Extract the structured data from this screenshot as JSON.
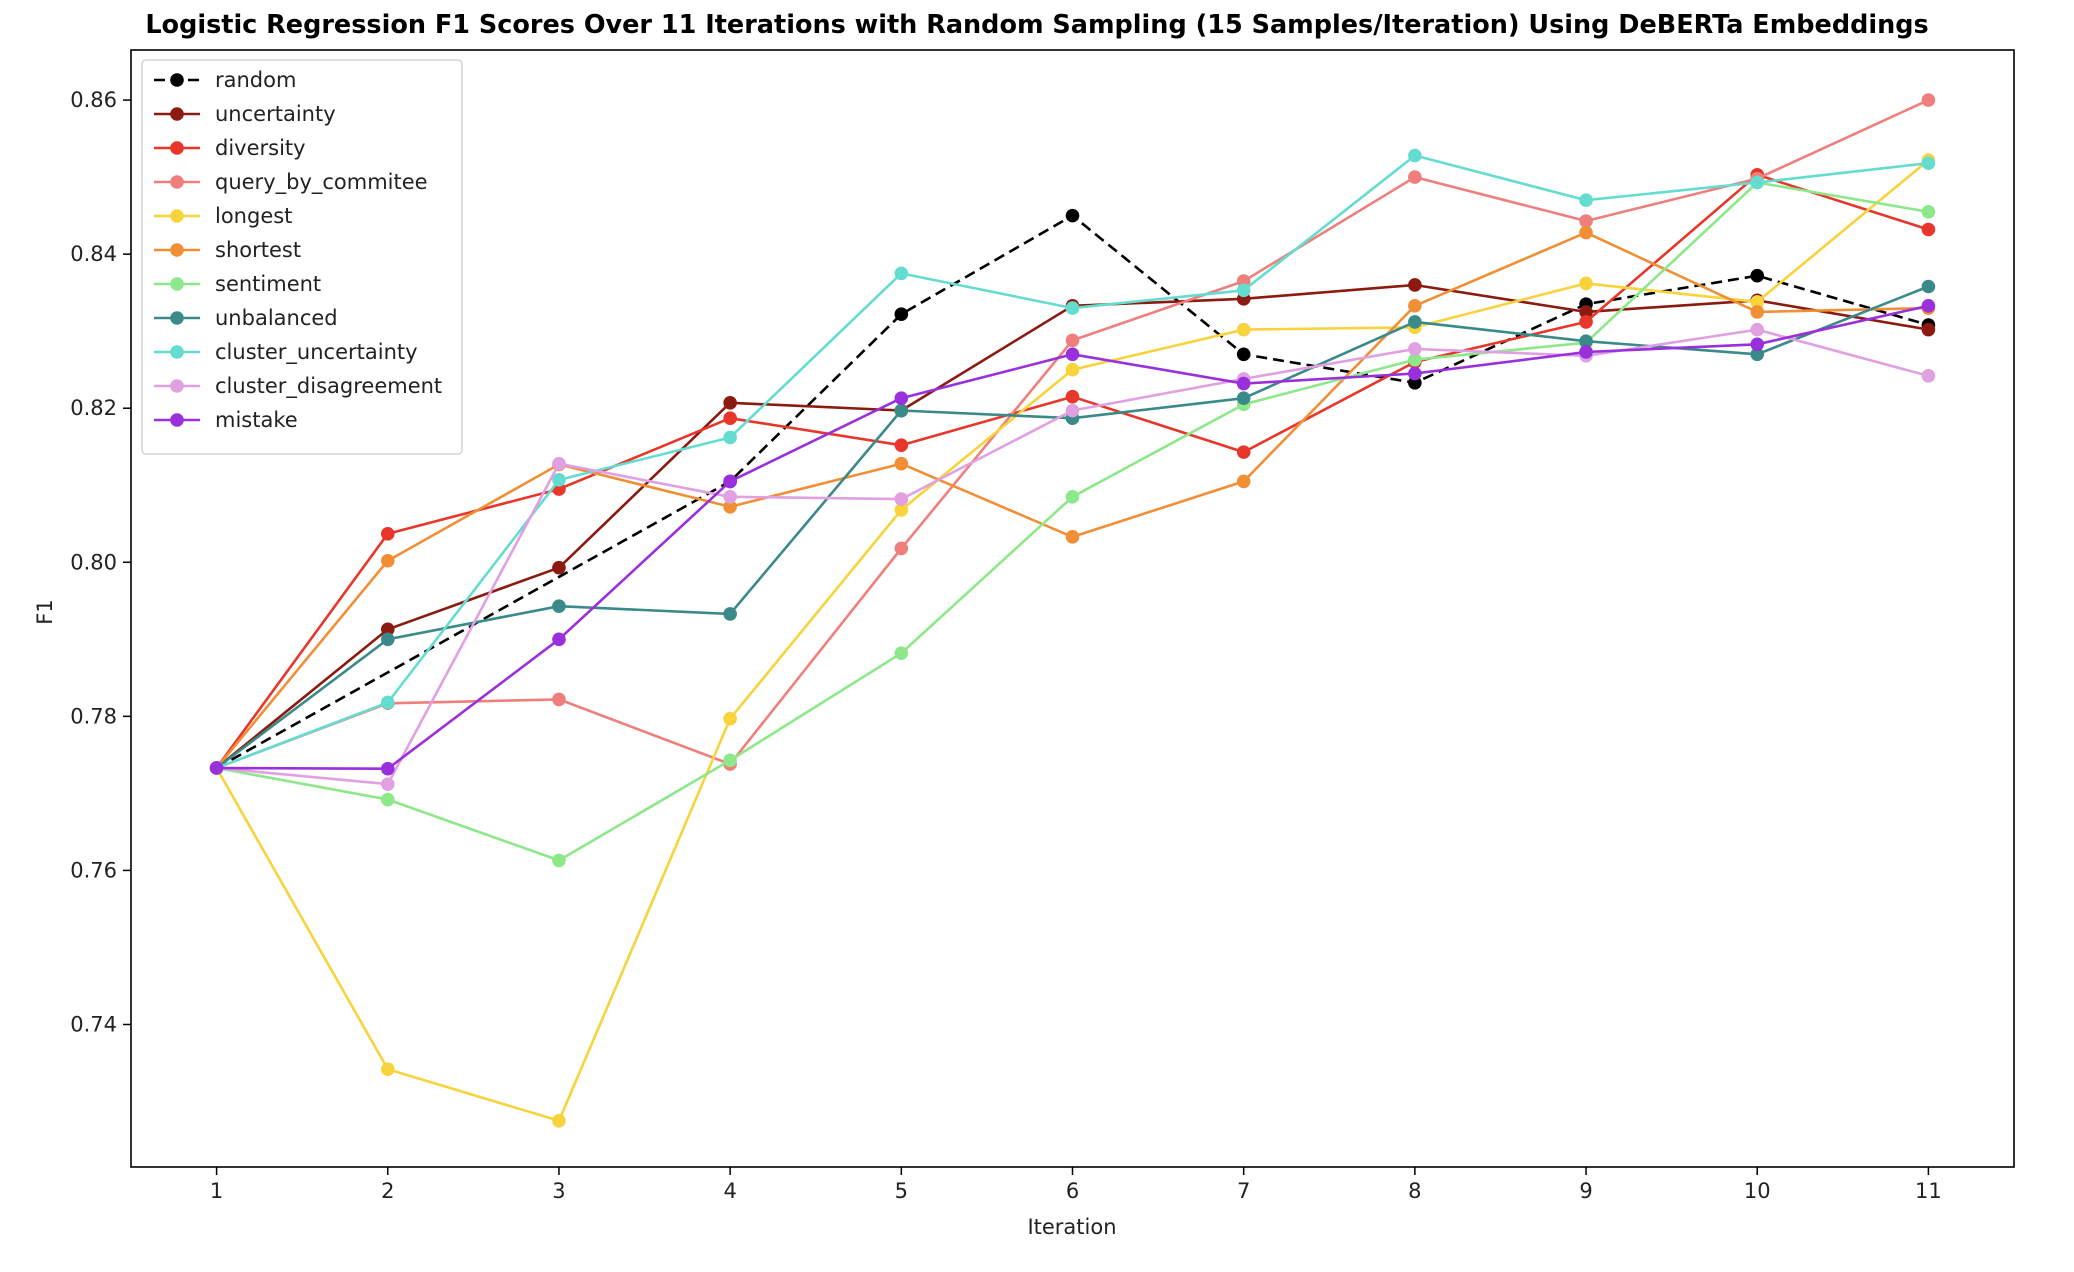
{
  "chart_data": {
    "type": "line",
    "title": "Logistic Regression F1 Scores Over 11 Iterations with Random Sampling (15 Samples/Iteration) Using DeBERTa Embeddings",
    "xlabel": "Iteration",
    "ylabel": "F1",
    "x": [
      1,
      2,
      3,
      4,
      5,
      6,
      7,
      8,
      9,
      10,
      11
    ],
    "xlim": [
      0.5,
      11.5
    ],
    "ylim": [
      0.7215,
      0.8665
    ],
    "yticks": [
      0.74,
      0.76,
      0.78,
      0.8,
      0.82,
      0.84,
      0.86
    ],
    "ytick_labels": [
      "0.74",
      "0.76",
      "0.78",
      "0.80",
      "0.82",
      "0.84",
      "0.86"
    ],
    "grid": false,
    "legend_position": "top-left",
    "series": [
      {
        "name": "random",
        "color": "#000000",
        "dashed": true,
        "values": [
          0.7733,
          null,
          null,
          0.8105,
          0.8322,
          0.845,
          0.827,
          0.8233,
          0.8335,
          0.8372,
          0.8308
        ]
      },
      {
        "name": "uncertainty",
        "color": "#8b1a10",
        "dashed": false,
        "values": [
          0.7733,
          0.7913,
          0.7993,
          0.8207,
          0.8197,
          0.8333,
          0.8342,
          0.836,
          0.8325,
          0.834,
          0.8302
        ]
      },
      {
        "name": "diversity",
        "color": "#e8362a",
        "dashed": false,
        "values": [
          0.7733,
          0.8037,
          0.8095,
          0.8187,
          0.8152,
          0.8215,
          0.8143,
          0.826,
          0.8312,
          0.8503,
          0.8432
        ]
      },
      {
        "name": "query_by_commitee",
        "color": "#ef7f7c",
        "dashed": false,
        "values": [
          0.7733,
          0.7817,
          0.7822,
          0.7738,
          0.8018,
          0.8288,
          0.8365,
          0.85,
          0.8443,
          0.8498,
          0.86
        ]
      },
      {
        "name": "longest",
        "color": "#f8d33c",
        "dashed": false,
        "values": [
          0.7733,
          0.7342,
          0.7275,
          0.7797,
          0.8068,
          0.825,
          0.8302,
          0.8305,
          0.8362,
          0.8338,
          0.8522
        ]
      },
      {
        "name": "shortest",
        "color": "#f18f36",
        "dashed": false,
        "values": [
          0.7733,
          0.8002,
          0.8127,
          0.8072,
          0.8128,
          0.8033,
          0.8105,
          0.8333,
          0.8428,
          0.8325,
          0.833
        ]
      },
      {
        "name": "sentiment",
        "color": "#8de88a",
        "dashed": false,
        "values": [
          0.7733,
          0.7692,
          0.7613,
          0.7743,
          0.7882,
          0.8085,
          0.8205,
          0.8263,
          0.8285,
          0.8493,
          0.8455
        ]
      },
      {
        "name": "unbalanced",
        "color": "#3a8a89",
        "dashed": false,
        "values": [
          0.7733,
          0.79,
          0.7943,
          0.7933,
          0.8197,
          0.8187,
          0.8213,
          0.8312,
          0.8287,
          0.827,
          0.8358
        ]
      },
      {
        "name": "cluster_uncertainty",
        "color": "#65dcd0",
        "dashed": false,
        "values": [
          0.7733,
          0.7818,
          0.8107,
          0.8162,
          0.8375,
          0.833,
          0.8353,
          0.8528,
          0.847,
          0.8493,
          0.8518
        ]
      },
      {
        "name": "cluster_disagreement",
        "color": "#e0a0e2",
        "dashed": false,
        "values": [
          0.7733,
          0.7712,
          0.8128,
          0.8085,
          0.8082,
          0.8197,
          0.8238,
          0.8277,
          0.8268,
          0.8302,
          0.8242
        ]
      },
      {
        "name": "mistake",
        "color": "#9a2fdc",
        "dashed": false,
        "values": [
          0.7733,
          0.7732,
          0.79,
          0.8105,
          0.8213,
          0.827,
          0.8232,
          0.8245,
          0.8273,
          0.8283,
          0.8333
        ]
      }
    ]
  }
}
